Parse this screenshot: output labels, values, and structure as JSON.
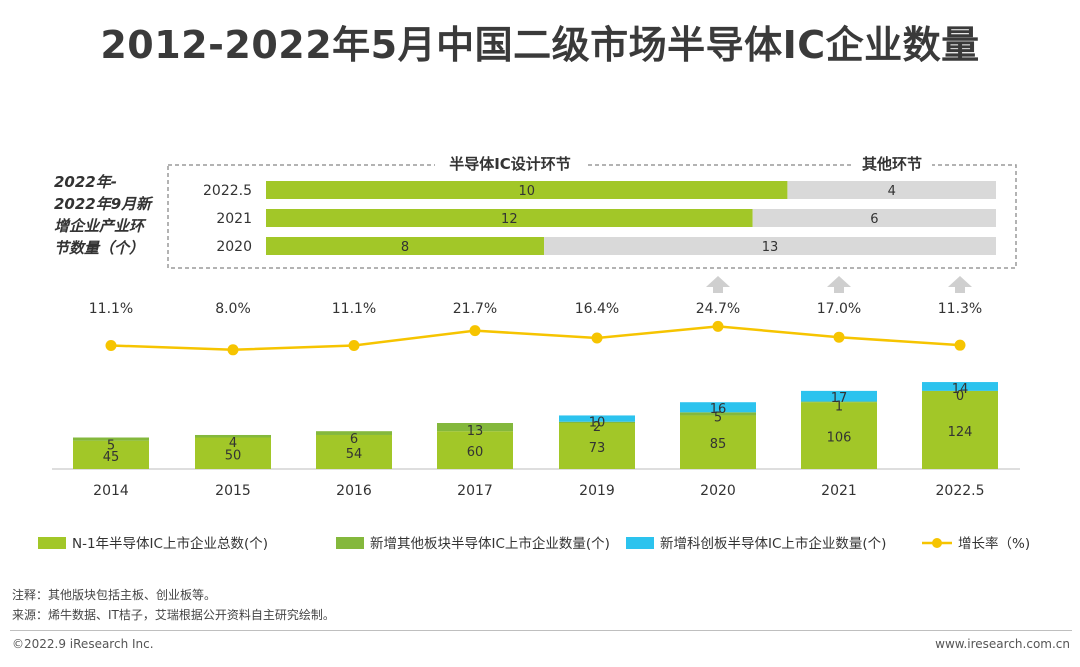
{
  "title": "2012-2022年5月中国二级市场半导体IC企业数量",
  "colors": {
    "base": "#a2c728",
    "other_board": "#84b83c",
    "star_board": "#2cc3ee",
    "growth": "#f6c400",
    "gray_bar": "#d9d9d9"
  },
  "chart_data": [
    {
      "type": "bar",
      "orientation": "horizontal",
      "stacked": true,
      "side_label": [
        "2022年-",
        "2022年9月新",
        "增企业产业环",
        "节数量（个）"
      ],
      "section_labels": [
        "半导体IC设计环节",
        "其他环节"
      ],
      "categories": [
        "2022.5",
        "2021",
        "2020"
      ],
      "series": [
        {
          "name": "半导体IC设计环节",
          "values": [
            10,
            12,
            8
          ]
        },
        {
          "name": "其他环节",
          "values": [
            4,
            6,
            13
          ]
        }
      ]
    },
    {
      "type": "bar",
      "stacked": true,
      "categories": [
        "2014",
        "2015",
        "2016",
        "2017",
        "2019",
        "2020",
        "2021",
        "2022.5"
      ],
      "series": [
        {
          "name": "N-1年半导体IC上市企业总数(个)",
          "values": [
            45,
            50,
            54,
            60,
            73,
            85,
            106,
            124
          ]
        },
        {
          "name": "新增其他板块半导体IC上市企业数量(个)",
          "values": [
            5,
            4,
            6,
            13,
            2,
            5,
            1,
            0
          ]
        },
        {
          "name": "新增科创板半导体IC上市企业数量(个)",
          "values": [
            null,
            null,
            null,
            null,
            10,
            16,
            17,
            14
          ]
        }
      ],
      "line_series": {
        "name": "增长率（%)",
        "values": [
          11.1,
          8.0,
          11.1,
          21.7,
          16.4,
          24.7,
          17.0,
          11.3
        ],
        "labels": [
          "11.1%",
          "8.0%",
          "11.1%",
          "21.7%",
          "16.4%",
          "24.7%",
          "17.0%",
          "11.3%"
        ]
      },
      "legend_position": "bottom"
    }
  ],
  "notes": {
    "note": "注释：其他版块包括主板、创业板等。",
    "source": "来源：烯牛数据、IT桔子，艾瑞根据公开资料自主研究绘制。"
  },
  "footer": {
    "left": "©2022.9 iResearch Inc.",
    "right": "www.iresearch.com.cn"
  }
}
